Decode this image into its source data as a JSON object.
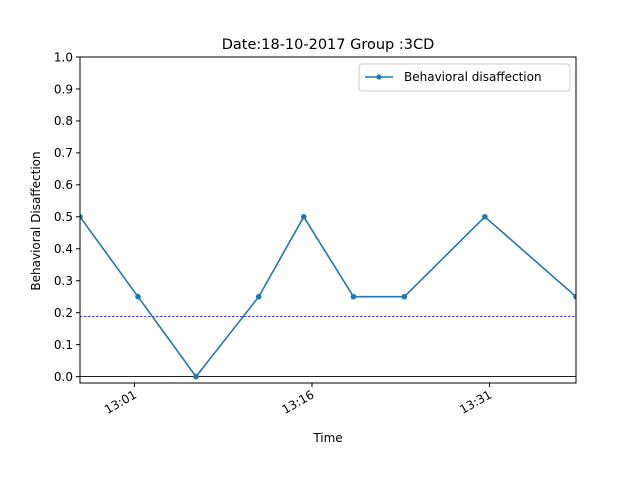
{
  "chart_data": {
    "type": "line",
    "title": "Date:18-10-2017 Group :3CD",
    "xlabel": "Time",
    "ylabel": "Behavioral Disaffection",
    "x_unit": "time of day (HH:MM, decimal minutes)",
    "xlim": [
      "12:56.4",
      "13:38.3"
    ],
    "ylim": [
      -0.02,
      1.0
    ],
    "y_ticks": [
      "0.0",
      "0.1",
      "0.2",
      "0.3",
      "0.4",
      "0.5",
      "0.6",
      "0.7",
      "0.8",
      "0.9",
      "1.0"
    ],
    "x_ticks": [
      {
        "label": "13:01",
        "time": "13:01"
      },
      {
        "label": "13:16",
        "time": "13:16"
      },
      {
        "label": "13:31",
        "time": "13:31"
      }
    ],
    "series": [
      {
        "name": "Behavioral disaffection",
        "color": "#1f77b4",
        "marker": "point",
        "x": [
          "12:56.4",
          "13:01.3",
          "13:06.2",
          "13:11.5",
          "13:15.3",
          "13:19.5",
          "13:23.8",
          "13:30.6",
          "13:38.3"
        ],
        "y": [
          0.5,
          0.25,
          0.0,
          0.25,
          0.5,
          0.25,
          0.25,
          0.5,
          0.25
        ]
      }
    ],
    "reference_lines": [
      {
        "y": 0.188,
        "color": "#0000ff",
        "style": "dashed"
      },
      {
        "y": 0.0,
        "color": "#000000",
        "style": "solid"
      }
    ],
    "legend_position": "top-right",
    "grid": false
  }
}
